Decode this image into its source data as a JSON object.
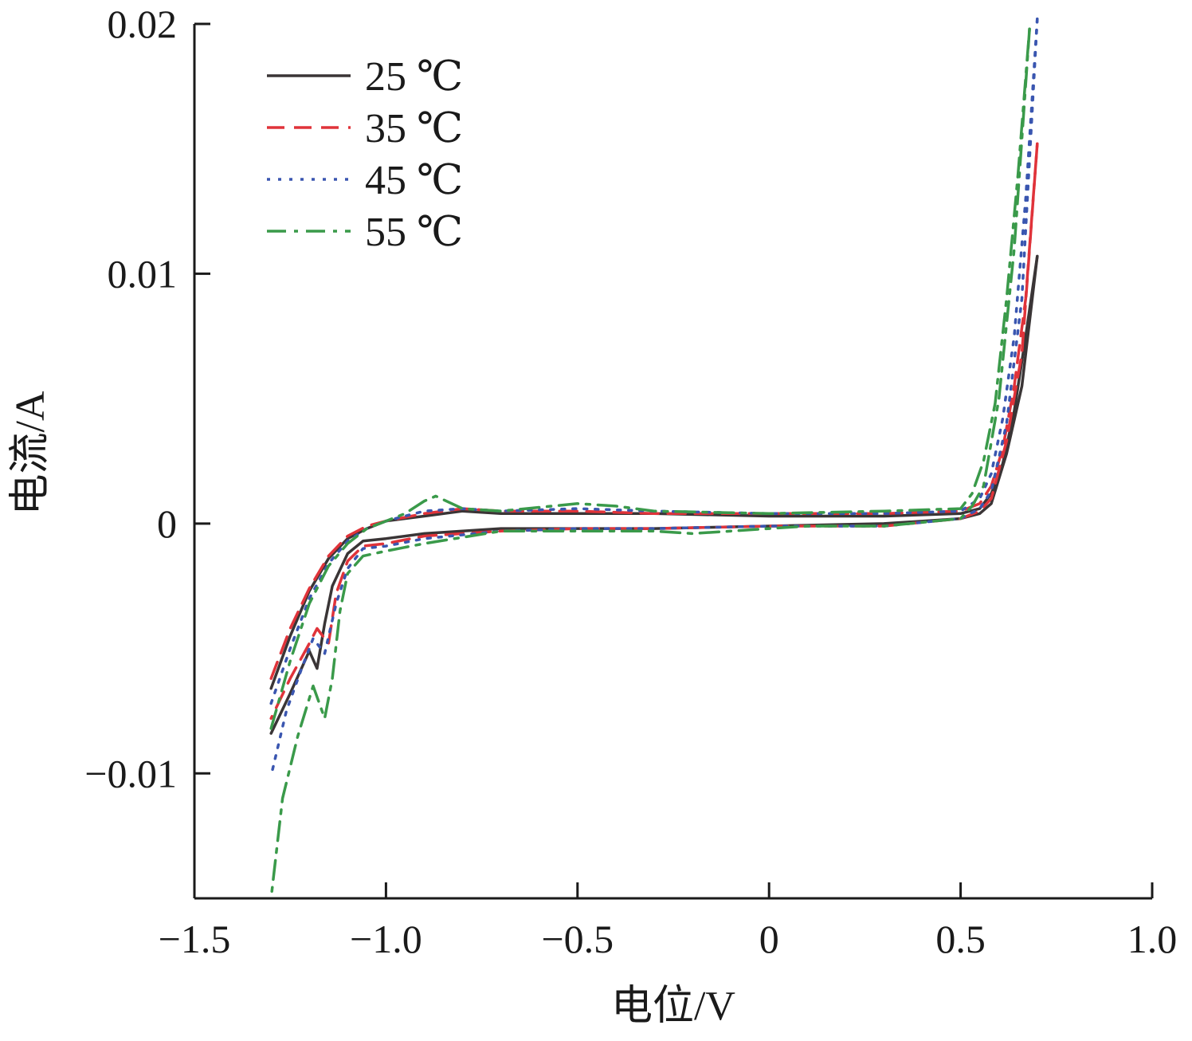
{
  "chart_data": {
    "type": "line",
    "title": "",
    "xlabel": "电位/V",
    "ylabel": "电流/A",
    "xlim": [
      -1.5,
      1.0
    ],
    "ylim": [
      -0.015,
      0.02
    ],
    "x_ticks": [
      -1.5,
      -1.0,
      -0.5,
      0,
      0.5,
      1.0
    ],
    "x_tick_labels": [
      "−1.5",
      "−1.0",
      "−0.5",
      "0",
      "0.5",
      "1.0"
    ],
    "y_ticks": [
      -0.01,
      0,
      0.01,
      0.02
    ],
    "y_tick_labels": [
      "−0.01",
      "0",
      "0.01",
      "0.02"
    ],
    "grid": false,
    "legend_position": "top-left",
    "series": [
      {
        "name": "25 ℃",
        "color": "#3a3536",
        "dash": "solid",
        "anodic": [
          [
            -1.3,
            -0.0066
          ],
          [
            -1.25,
            -0.0045
          ],
          [
            -1.2,
            -0.0027
          ],
          [
            -1.15,
            -0.0014
          ],
          [
            -1.1,
            -0.0006
          ],
          [
            -1.05,
            -0.0002
          ],
          [
            -1.0,
            0.0001
          ],
          [
            -0.9,
            0.0003
          ],
          [
            -0.8,
            0.0005
          ],
          [
            -0.7,
            0.0004
          ],
          [
            -0.5,
            0.0004
          ],
          [
            -0.3,
            0.0004
          ],
          [
            0,
            0.0003
          ],
          [
            0.3,
            0.0003
          ],
          [
            0.5,
            0.0004
          ],
          [
            0.55,
            0.0006
          ],
          [
            0.58,
            0.0012
          ],
          [
            0.61,
            0.0024
          ],
          [
            0.64,
            0.0045
          ],
          [
            0.67,
            0.0075
          ],
          [
            0.7,
            0.0107
          ]
        ],
        "cathodic": [
          [
            0.7,
            0.0107
          ],
          [
            0.66,
            0.0055
          ],
          [
            0.62,
            0.0028
          ],
          [
            0.58,
            0.0008
          ],
          [
            0.55,
            0.0004
          ],
          [
            0.5,
            0.0002
          ],
          [
            0.3,
            0.0
          ],
          [
            0,
            -0.0001
          ],
          [
            -0.3,
            -0.0002
          ],
          [
            -0.5,
            -0.0002
          ],
          [
            -0.7,
            -0.0002
          ],
          [
            -0.9,
            -0.0004
          ],
          [
            -1.0,
            -0.0006
          ],
          [
            -1.06,
            -0.0007
          ],
          [
            -1.1,
            -0.0012
          ],
          [
            -1.14,
            -0.0025
          ],
          [
            -1.16,
            -0.004
          ],
          [
            -1.18,
            -0.0058
          ],
          [
            -1.2,
            -0.0051
          ],
          [
            -1.25,
            -0.0068
          ],
          [
            -1.3,
            -0.0084
          ]
        ]
      },
      {
        "name": "35 ℃",
        "color": "#e0333a",
        "dash": "dashed",
        "anodic": [
          [
            -1.3,
            -0.0062
          ],
          [
            -1.25,
            -0.0042
          ],
          [
            -1.2,
            -0.0026
          ],
          [
            -1.15,
            -0.0013
          ],
          [
            -1.1,
            -0.0005
          ],
          [
            -1.05,
            -0.0001
          ],
          [
            -1.0,
            0.0001
          ],
          [
            -0.9,
            0.0004
          ],
          [
            -0.8,
            0.0006
          ],
          [
            -0.7,
            0.0005
          ],
          [
            -0.5,
            0.0005
          ],
          [
            -0.3,
            0.0004
          ],
          [
            0,
            0.0004
          ],
          [
            0.3,
            0.0004
          ],
          [
            0.5,
            0.0005
          ],
          [
            0.55,
            0.0008
          ],
          [
            0.58,
            0.0015
          ],
          [
            0.61,
            0.003
          ],
          [
            0.64,
            0.0055
          ],
          [
            0.67,
            0.009
          ],
          [
            0.7,
            0.0152
          ]
        ],
        "cathodic": [
          [
            0.7,
            0.0152
          ],
          [
            0.66,
            0.0068
          ],
          [
            0.62,
            0.0033
          ],
          [
            0.58,
            0.001
          ],
          [
            0.55,
            0.0005
          ],
          [
            0.5,
            0.0002
          ],
          [
            0.3,
            -0.0001
          ],
          [
            0,
            -0.0001
          ],
          [
            -0.3,
            -0.0002
          ],
          [
            -0.5,
            -0.0002
          ],
          [
            -0.7,
            -0.0003
          ],
          [
            -0.9,
            -0.0005
          ],
          [
            -1.0,
            -0.0008
          ],
          [
            -1.06,
            -0.0009
          ],
          [
            -1.1,
            -0.0015
          ],
          [
            -1.13,
            -0.0028
          ],
          [
            -1.15,
            -0.0048
          ],
          [
            -1.18,
            -0.0042
          ],
          [
            -1.2,
            -0.0048
          ],
          [
            -1.25,
            -0.0062
          ],
          [
            -1.3,
            -0.0078
          ]
        ]
      },
      {
        "name": "45 ℃",
        "color": "#3a56b0",
        "dash": "dotted",
        "anodic": [
          [
            -1.3,
            -0.0072
          ],
          [
            -1.25,
            -0.005
          ],
          [
            -1.2,
            -0.003
          ],
          [
            -1.15,
            -0.0016
          ],
          [
            -1.1,
            -0.0007
          ],
          [
            -1.05,
            -0.0002
          ],
          [
            -1.0,
            0.0001
          ],
          [
            -0.9,
            0.0005
          ],
          [
            -0.8,
            0.0006
          ],
          [
            -0.7,
            0.0005
          ],
          [
            -0.5,
            0.0006
          ],
          [
            -0.3,
            0.0005
          ],
          [
            0,
            0.0004
          ],
          [
            0.3,
            0.0004
          ],
          [
            0.5,
            0.0005
          ],
          [
            0.55,
            0.001
          ],
          [
            0.58,
            0.002
          ],
          [
            0.61,
            0.0042
          ],
          [
            0.64,
            0.0075
          ],
          [
            0.67,
            0.013
          ],
          [
            0.7,
            0.0202
          ]
        ],
        "cathodic": [
          [
            0.7,
            0.0202
          ],
          [
            0.66,
            0.009
          ],
          [
            0.62,
            0.004
          ],
          [
            0.58,
            0.0013
          ],
          [
            0.55,
            0.0006
          ],
          [
            0.5,
            0.0002
          ],
          [
            0.3,
            -0.0001
          ],
          [
            0,
            -0.0001
          ],
          [
            -0.3,
            -0.0002
          ],
          [
            -0.5,
            -0.0002
          ],
          [
            -0.7,
            -0.0003
          ],
          [
            -0.9,
            -0.0006
          ],
          [
            -1.0,
            -0.0009
          ],
          [
            -1.06,
            -0.001
          ],
          [
            -1.1,
            -0.0018
          ],
          [
            -1.13,
            -0.0032
          ],
          [
            -1.16,
            -0.0052
          ],
          [
            -1.19,
            -0.0046
          ],
          [
            -1.22,
            -0.0058
          ],
          [
            -1.26,
            -0.0075
          ],
          [
            -1.3,
            -0.0101
          ]
        ]
      },
      {
        "name": "55 ℃",
        "color": "#3a9a4a",
        "dash": "dashdot",
        "anodic": [
          [
            -1.3,
            -0.0082
          ],
          [
            -1.25,
            -0.0055
          ],
          [
            -1.2,
            -0.0032
          ],
          [
            -1.15,
            -0.0017
          ],
          [
            -1.1,
            -0.0008
          ],
          [
            -1.05,
            -0.0002
          ],
          [
            -1.0,
            0.0001
          ],
          [
            -0.95,
            0.0004
          ],
          [
            -0.9,
            0.0009
          ],
          [
            -0.87,
            0.0011
          ],
          [
            -0.8,
            0.0006
          ],
          [
            -0.7,
            0.0005
          ],
          [
            -0.5,
            0.0008
          ],
          [
            -0.4,
            0.0007
          ],
          [
            -0.3,
            0.0005
          ],
          [
            0,
            0.0004
          ],
          [
            0.3,
            0.0005
          ],
          [
            0.5,
            0.0006
          ],
          [
            0.53,
            0.0012
          ],
          [
            0.56,
            0.0025
          ],
          [
            0.59,
            0.0048
          ],
          [
            0.62,
            0.009
          ],
          [
            0.65,
            0.014
          ],
          [
            0.68,
            0.0198
          ]
        ],
        "cathodic": [
          [
            0.68,
            0.0198
          ],
          [
            0.64,
            0.011
          ],
          [
            0.6,
            0.005
          ],
          [
            0.56,
            0.0015
          ],
          [
            0.53,
            0.0007
          ],
          [
            0.5,
            0.0002
          ],
          [
            0.3,
            -0.0001
          ],
          [
            0.1,
            -0.0001
          ],
          [
            -0.2,
            -0.0004
          ],
          [
            -0.3,
            -0.0003
          ],
          [
            -0.5,
            -0.0003
          ],
          [
            -0.7,
            -0.0003
          ],
          [
            -0.9,
            -0.0008
          ],
          [
            -1.0,
            -0.0011
          ],
          [
            -1.06,
            -0.0013
          ],
          [
            -1.1,
            -0.002
          ],
          [
            -1.12,
            -0.0035
          ],
          [
            -1.14,
            -0.0062
          ],
          [
            -1.16,
            -0.0078
          ],
          [
            -1.19,
            -0.0065
          ],
          [
            -1.23,
            -0.0085
          ],
          [
            -1.27,
            -0.011
          ],
          [
            -1.3,
            -0.015
          ]
        ]
      }
    ]
  }
}
